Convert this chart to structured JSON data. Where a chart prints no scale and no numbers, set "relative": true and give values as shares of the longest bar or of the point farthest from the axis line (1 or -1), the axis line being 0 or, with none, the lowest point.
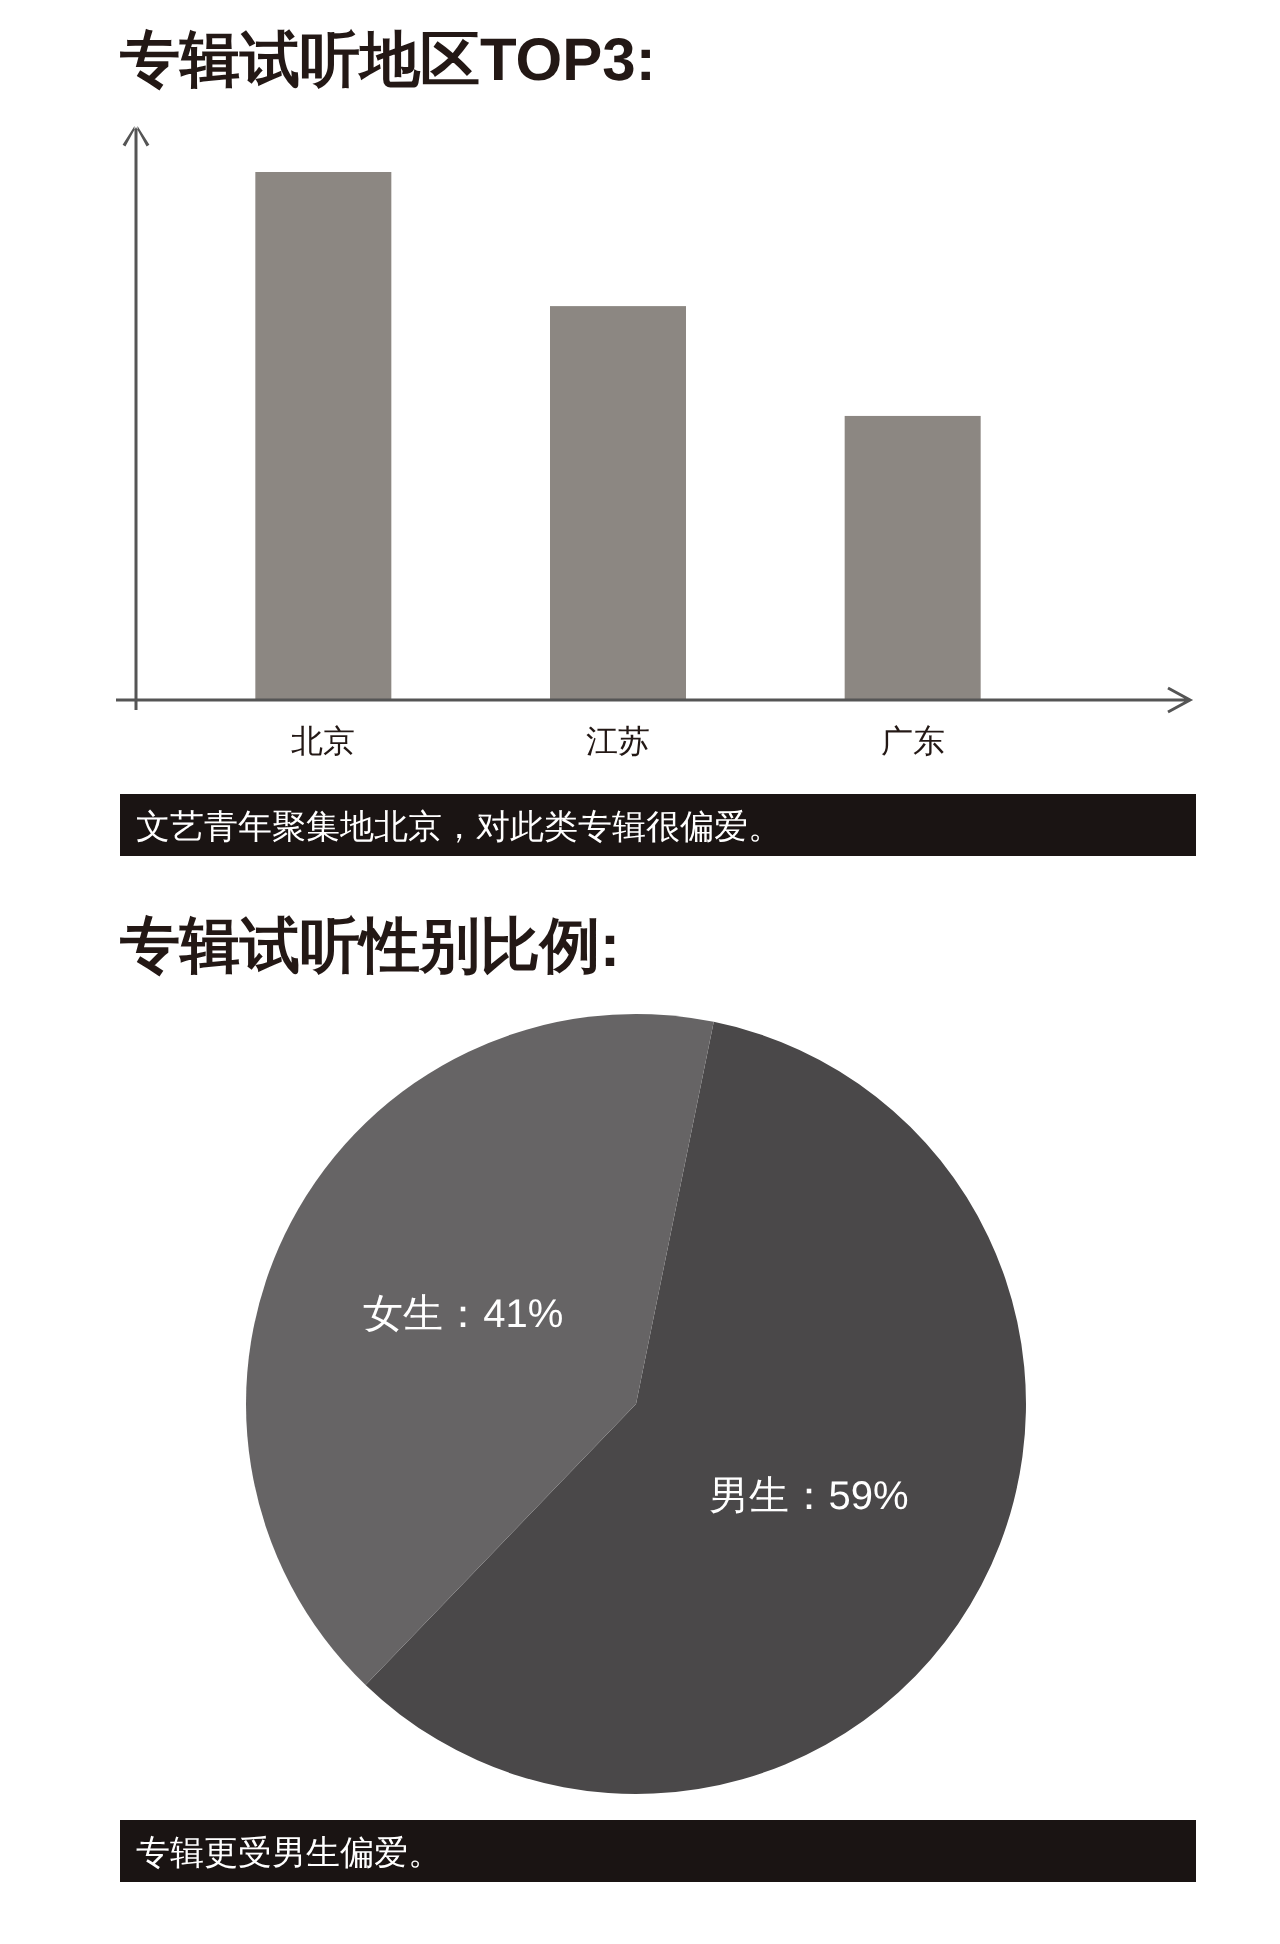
{
  "chart_data": [
    {
      "type": "bar",
      "title": "专辑试听地区TOP3:",
      "categories": [
        "北京",
        "江苏",
        "广东"
      ],
      "values": [
        1,
        0.746,
        0.538
      ],
      "color": "#8c8782",
      "relative": true,
      "annotations": [
        "文艺青年聚集地北京，对此类专辑很偏爱。"
      ]
    },
    {
      "type": "pie",
      "title": "专辑试听性别比例:",
      "categories": [
        "男生",
        "女生"
      ],
      "values": [
        59,
        41
      ],
      "colors": [
        "#4a4849",
        "#666465"
      ],
      "value_labels": [
        "：59%",
        "：41%"
      ],
      "annotations": [
        "专辑更受男生偏爱。"
      ]
    }
  ]
}
